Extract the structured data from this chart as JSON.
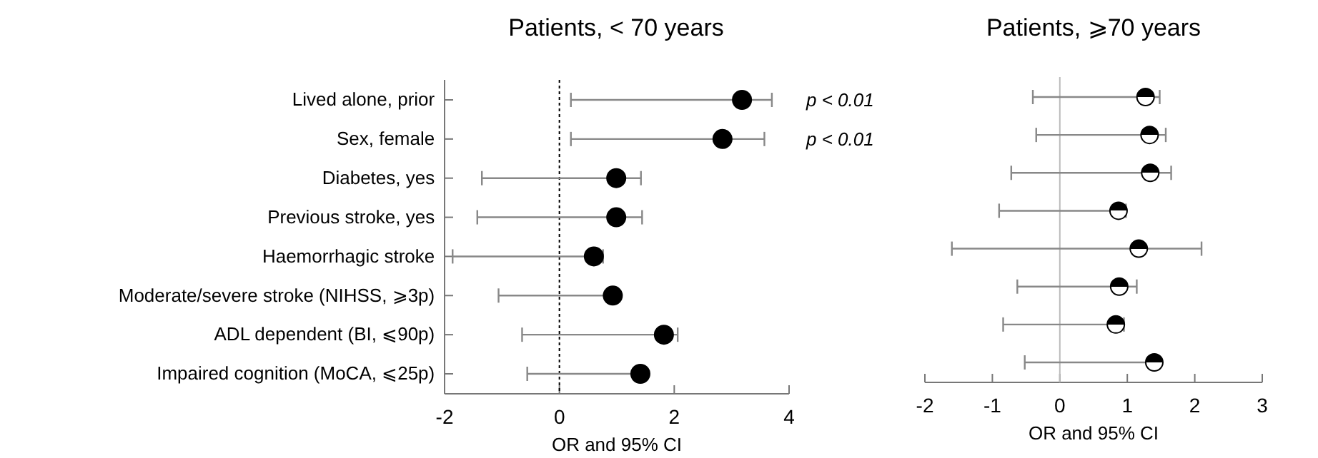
{
  "chart_data": [
    {
      "type": "scatter",
      "orientation": "horizontal",
      "title": "Patients, < 70 years",
      "xlabel": "OR and 95% CI",
      "categories": [
        "Lived alone, prior",
        "Sex, female",
        "Diabetes, yes",
        "Previous stroke, yes",
        "Haemorrhagic stroke",
        "Moderate/severe stroke (NIHSS, ⩾3p)",
        "ADL dependent (BI, ⩽90p)",
        "Impaired cognition (MoCA, ⩽25p)"
      ],
      "series": [
        {
          "color": "#000000",
          "values": [
            3.18,
            2.84,
            0.99,
            0.99,
            0.6,
            0.93,
            1.82,
            1.41
          ],
          "errors": [
            [
              0.2,
              3.7
            ],
            [
              0.2,
              3.57
            ],
            [
              -1.35,
              1.42
            ],
            [
              -1.43,
              1.44
            ],
            [
              -1.86,
              0.76
            ],
            [
              -1.06,
              0.95
            ],
            [
              -0.65,
              2.06
            ],
            [
              -0.56,
              1.41
            ]
          ]
        }
      ],
      "xlim": [
        -2,
        4
      ],
      "xticks": [
        -2,
        0,
        2,
        4
      ],
      "marker": "circle",
      "ref_lines": [
        {
          "axis": "x",
          "value": 0,
          "line_style": "dotted",
          "color": "#000000"
        }
      ],
      "annotations": [
        "p < 0.01",
        "p < 0.01"
      ]
    },
    {
      "type": "scatter",
      "orientation": "horizontal",
      "title": "Patients, ⩾70 years",
      "xlabel": "OR and 95% CI",
      "categories": [
        null,
        null,
        null,
        null,
        null,
        null,
        null,
        null
      ],
      "series": [
        {
          "color": "#000000",
          "values": [
            1.27,
            1.33,
            1.34,
            0.87,
            1.17,
            0.88,
            0.83,
            1.4
          ],
          "errors": [
            [
              -0.4,
              1.48
            ],
            [
              -0.35,
              1.57
            ],
            [
              -0.72,
              1.65
            ],
            [
              -0.9,
              0.98
            ],
            [
              -1.6,
              2.1
            ],
            [
              -0.63,
              1.14
            ],
            [
              -0.84,
              0.95
            ],
            [
              -0.52,
              1.42
            ]
          ]
        }
      ],
      "xlim": [
        -2,
        3
      ],
      "xticks": [
        -2,
        -1,
        0,
        1,
        2,
        3
      ],
      "marker": "circle",
      "tick_labels": "x",
      "ref_lines": [
        {
          "axis": "x",
          "value": 0,
          "line_style": "solid",
          "color": "#bbbbbb"
        }
      ]
    }
  ]
}
